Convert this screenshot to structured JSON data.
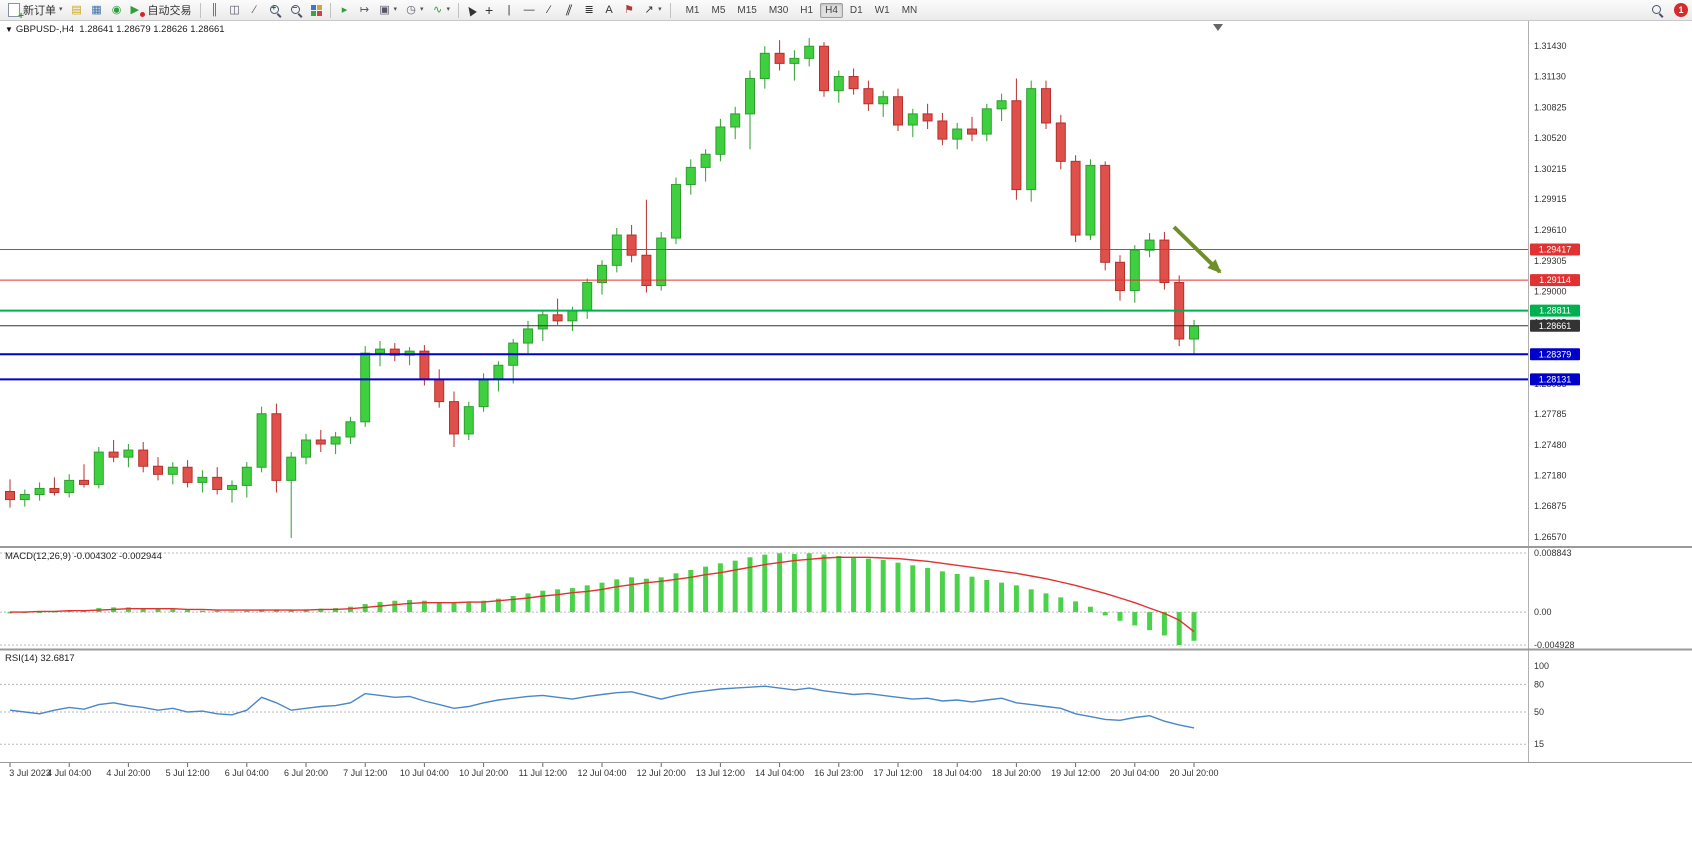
{
  "toolbar": {
    "new_order_label": "新订单",
    "autotrading_label": "自动交易",
    "timeframes": {
      "items": [
        "M1",
        "M5",
        "M15",
        "M30",
        "H1",
        "H4",
        "D1",
        "W1",
        "MN"
      ],
      "active": "H4"
    },
    "notification_count": "1",
    "buttons": [
      "new-order",
      "charts",
      "profiles",
      "navigator",
      "autotrading",
      "bar-chart",
      "candlesticks",
      "line-chart",
      "zoom-in",
      "zoom-out",
      "tile-windows",
      "auto-scroll",
      "chart-shift",
      "new-chart",
      "periods",
      "indicators",
      "cursor",
      "crosshair",
      "vertical-line",
      "horizontal-line",
      "trendline",
      "equidistant-channel",
      "fibonacci-retracement",
      "text",
      "text-label",
      "arrows",
      "search"
    ]
  },
  "chart": {
    "title": {
      "symbol_period": "GBPUSD-,H4",
      "ohlc": "1.28641 1.28679 1.28626 1.28661"
    }
  },
  "indicators": {
    "macd": {
      "label": "MACD(12,26,9) -0.004302 -0.002944"
    },
    "rsi": {
      "label": "RSI(14) 32.6817"
    }
  },
  "chart_data": {
    "type": "candlestick",
    "symbol": "GBPUSD-",
    "period": "H4",
    "price_range": {
      "min": 1.2648,
      "max": 1.3168
    },
    "price_axis_labels": [
      "1.31430",
      "1.31130",
      "1.30825",
      "1.30520",
      "1.30215",
      "1.29915",
      "1.29610",
      "1.29305",
      "1.29000",
      "1.28695",
      "1.28390",
      "1.28085",
      "1.27785",
      "1.27480",
      "1.27180",
      "1.26875",
      "1.26570"
    ],
    "time_labels": [
      "3 Jul 2023",
      "4 Jul 04:00",
      "4 Jul 20:00",
      "5 Jul 12:00",
      "6 Jul 04:00",
      "6 Jul 20:00",
      "7 Jul 12:00",
      "10 Jul 04:00",
      "10 Jul 20:00",
      "11 Jul 12:00",
      "12 Jul 04:00",
      "12 Jul 20:00",
      "13 Jul 12:00",
      "14 Jul 04:00",
      "16 Jul 23:00",
      "17 Jul 12:00",
      "18 Jul 04:00",
      "18 Jul 20:00",
      "19 Jul 12:00",
      "20 Jul 04:00",
      "20 Jul 20:00"
    ],
    "candles": [
      [
        1.2702,
        1.2714,
        1.2686,
        1.2694
      ],
      [
        1.2694,
        1.2704,
        1.2687,
        1.2699
      ],
      [
        1.2699,
        1.2711,
        1.2693,
        1.2705
      ],
      [
        1.2705,
        1.2716,
        1.2698,
        1.2701
      ],
      [
        1.2701,
        1.2719,
        1.2696,
        1.2713
      ],
      [
        1.2713,
        1.2729,
        1.2706,
        1.2709
      ],
      [
        1.2709,
        1.2746,
        1.2705,
        1.2741
      ],
      [
        1.2741,
        1.2753,
        1.2731,
        1.2736
      ],
      [
        1.2736,
        1.2749,
        1.2726,
        1.2743
      ],
      [
        1.2743,
        1.2751,
        1.2721,
        1.2727
      ],
      [
        1.2727,
        1.2736,
        1.2713,
        1.2719
      ],
      [
        1.2719,
        1.2731,
        1.2709,
        1.2726
      ],
      [
        1.2726,
        1.2733,
        1.2706,
        1.2711
      ],
      [
        1.2711,
        1.2723,
        1.2701,
        1.2716
      ],
      [
        1.2716,
        1.2726,
        1.2699,
        1.2704
      ],
      [
        1.2704,
        1.2713,
        1.2691,
        1.2708
      ],
      [
        1.2708,
        1.2731,
        1.2696,
        1.2726
      ],
      [
        1.2726,
        1.2786,
        1.2721,
        1.2779
      ],
      [
        1.2779,
        1.2789,
        1.2701,
        1.2713
      ],
      [
        1.2713,
        1.2741,
        1.2656,
        1.2736
      ],
      [
        1.2736,
        1.2759,
        1.2729,
        1.2753
      ],
      [
        1.2753,
        1.2763,
        1.2741,
        1.2749
      ],
      [
        1.2749,
        1.2761,
        1.2739,
        1.2756
      ],
      [
        1.2756,
        1.2776,
        1.2749,
        1.2771
      ],
      [
        1.2771,
        1.2846,
        1.2766,
        1.2839
      ],
      [
        1.2839,
        1.2851,
        1.2826,
        1.2843
      ],
      [
        1.2843,
        1.2849,
        1.2831,
        1.2837
      ],
      [
        1.2837,
        1.2845,
        1.2827,
        1.2841
      ],
      [
        1.2841,
        1.2847,
        1.2807,
        1.2813
      ],
      [
        1.2813,
        1.2823,
        1.2785,
        1.2791
      ],
      [
        1.2791,
        1.2801,
        1.2746,
        1.2759
      ],
      [
        1.2759,
        1.2791,
        1.2753,
        1.2786
      ],
      [
        1.2786,
        1.2819,
        1.2781,
        1.2813
      ],
      [
        1.2813,
        1.2831,
        1.2801,
        1.2827
      ],
      [
        1.2827,
        1.2853,
        1.2809,
        1.2849
      ],
      [
        1.2849,
        1.2871,
        1.2839,
        1.2863
      ],
      [
        1.2863,
        1.2881,
        1.2851,
        1.2877
      ],
      [
        1.2877,
        1.2893,
        1.2867,
        1.2871
      ],
      [
        1.2871,
        1.2885,
        1.2861,
        1.2881
      ],
      [
        1.2881,
        1.2913,
        1.2873,
        1.2909
      ],
      [
        1.2909,
        1.2931,
        1.2897,
        1.2926
      ],
      [
        1.2926,
        1.2963,
        1.2919,
        1.2956
      ],
      [
        1.2956,
        1.2966,
        1.2929,
        1.2936
      ],
      [
        1.2936,
        1.2991,
        1.2899,
        1.2906
      ],
      [
        1.2906,
        1.2959,
        1.2901,
        1.2953
      ],
      [
        1.2953,
        1.3013,
        1.2947,
        1.3006
      ],
      [
        1.3006,
        1.3031,
        1.2996,
        1.3023
      ],
      [
        1.3023,
        1.3041,
        1.3009,
        1.3036
      ],
      [
        1.3036,
        1.3071,
        1.3029,
        1.3063
      ],
      [
        1.3063,
        1.3083,
        1.3051,
        1.3076
      ],
      [
        1.3076,
        1.3119,
        1.3041,
        1.3111
      ],
      [
        1.3111,
        1.3143,
        1.3101,
        1.3136
      ],
      [
        1.3136,
        1.3149,
        1.3119,
        1.3126
      ],
      [
        1.3126,
        1.3139,
        1.3109,
        1.3131
      ],
      [
        1.3131,
        1.3151,
        1.3123,
        1.3143
      ],
      [
        1.3143,
        1.3147,
        1.3093,
        1.3099
      ],
      [
        1.3099,
        1.3119,
        1.3087,
        1.3113
      ],
      [
        1.3113,
        1.3121,
        1.3095,
        1.3101
      ],
      [
        1.3101,
        1.3109,
        1.3079,
        1.3086
      ],
      [
        1.3086,
        1.3099,
        1.3073,
        1.3093
      ],
      [
        1.3093,
        1.3101,
        1.3059,
        1.3065
      ],
      [
        1.3065,
        1.3081,
        1.3053,
        1.3076
      ],
      [
        1.3076,
        1.3086,
        1.3061,
        1.3069
      ],
      [
        1.3069,
        1.3077,
        1.3045,
        1.3051
      ],
      [
        1.3051,
        1.3067,
        1.3041,
        1.3061
      ],
      [
        1.3061,
        1.3073,
        1.3049,
        1.3056
      ],
      [
        1.3056,
        1.3086,
        1.3049,
        1.3081
      ],
      [
        1.3081,
        1.3096,
        1.3069,
        1.3089
      ],
      [
        1.3089,
        1.3111,
        1.2991,
        1.3001
      ],
      [
        1.3001,
        1.3109,
        1.2989,
        1.3101
      ],
      [
        1.3101,
        1.3109,
        1.3061,
        1.3067
      ],
      [
        1.3067,
        1.3075,
        1.3021,
        1.3029
      ],
      [
        1.3029,
        1.3035,
        1.2949,
        1.2956
      ],
      [
        1.2956,
        1.3031,
        1.2951,
        1.3025
      ],
      [
        1.3025,
        1.3029,
        1.2921,
        1.2929
      ],
      [
        1.2929,
        1.2936,
        1.2891,
        1.2901
      ],
      [
        1.2901,
        1.2946,
        1.2889,
        1.2941
      ],
      [
        1.2941,
        1.2958,
        1.2934,
        1.2951
      ],
      [
        1.2951,
        1.2959,
        1.2902,
        1.2909
      ],
      [
        1.2909,
        1.2916,
        1.2846,
        1.2853
      ],
      [
        1.2853,
        1.2872,
        1.2837,
        1.2866
      ]
    ],
    "levels": [
      {
        "label": "1.29417",
        "price": 1.29417,
        "color": "#e03232",
        "width": 1
      },
      {
        "label": "1.29114",
        "price": 1.29114,
        "color": "#e03232",
        "width": 1
      },
      {
        "label": "1.28811",
        "price": 1.28811,
        "color": "#00b050",
        "width": 2
      },
      {
        "label": "1.28661",
        "price": 1.28661,
        "color": "#333333",
        "width": 1,
        "current": true
      },
      {
        "label": "1.28379",
        "price": 1.28379,
        "color": "#0000cc",
        "width": 2
      },
      {
        "label": "1.28131",
        "price": 1.28131,
        "color": "#0000cc",
        "width": 2
      }
    ],
    "macd": {
      "histogram": [
        -0.0002,
        -0.0001,
        0,
        0.0001,
        0.0002,
        0.0003,
        0.0006,
        0.0007,
        0.0007,
        0.0006,
        0.0005,
        0.0004,
        0.0003,
        0.0002,
        0.0002,
        0.0001,
        0.0002,
        0.0004,
        0.0004,
        0.0003,
        0.0004,
        0.0005,
        0.0006,
        0.0008,
        0.0012,
        0.0015,
        0.0017,
        0.0018,
        0.0017,
        0.0015,
        0.0014,
        0.0015,
        0.0017,
        0.002,
        0.0024,
        0.0028,
        0.0032,
        0.0034,
        0.0036,
        0.004,
        0.0044,
        0.0049,
        0.0052,
        0.005,
        0.0052,
        0.0058,
        0.0063,
        0.0068,
        0.0073,
        0.0077,
        0.0082,
        0.0086,
        0.0088,
        0.0087,
        0.0088,
        0.0086,
        0.0084,
        0.0082,
        0.008,
        0.0078,
        0.0074,
        0.007,
        0.0066,
        0.0061,
        0.0057,
        0.0053,
        0.0048,
        0.0044,
        0.004,
        0.0034,
        0.0028,
        0.0022,
        0.0016,
        0.0008,
        -0.0005,
        -0.0013,
        -0.002,
        -0.0027,
        -0.0035,
        -0.00493,
        -0.0043
      ],
      "signal": [
        0,
        0,
        0.0001,
        0.0001,
        0.0002,
        0.0002,
        0.0003,
        0.0004,
        0.0005,
        0.0005,
        0.0005,
        0.0005,
        0.0004,
        0.0004,
        0.0003,
        0.0003,
        0.0003,
        0.0003,
        0.0003,
        0.0003,
        0.0003,
        0.0004,
        0.0004,
        0.0005,
        0.0007,
        0.0009,
        0.0011,
        0.0013,
        0.0014,
        0.0014,
        0.0014,
        0.0015,
        0.0015,
        0.0017,
        0.0019,
        0.0021,
        0.0024,
        0.0026,
        0.0029,
        0.0031,
        0.0034,
        0.0038,
        0.0041,
        0.0044,
        0.0046,
        0.0049,
        0.0052,
        0.0056,
        0.0059,
        0.0063,
        0.0067,
        0.0071,
        0.0074,
        0.0077,
        0.0079,
        0.0081,
        0.0082,
        0.0082,
        0.0082,
        0.0081,
        0.008,
        0.0078,
        0.0076,
        0.0073,
        0.007,
        0.0067,
        0.0064,
        0.0061,
        0.0058,
        0.0054,
        0.005,
        0.0045,
        0.004,
        0.0034,
        0.0028,
        0.0021,
        0.0014,
        0.0006,
        -0.0002,
        -0.0012,
        -0.00294
      ],
      "axis": [
        {
          "text": "0.008843",
          "value": 0.008843
        },
        {
          "text": "0.00",
          "value": 0
        },
        {
          "text": "-0.004928",
          "value": -0.004928
        }
      ]
    },
    "rsi": {
      "values": [
        52,
        50,
        48,
        52,
        55,
        53,
        58,
        60,
        57,
        55,
        52,
        54,
        50,
        51,
        48,
        47,
        52,
        66,
        60,
        52,
        54,
        56,
        57,
        60,
        70,
        68,
        66,
        67,
        62,
        58,
        54,
        56,
        60,
        63,
        65,
        67,
        68,
        66,
        64,
        67,
        69,
        71,
        72,
        68,
        64,
        68,
        71,
        73,
        75,
        76,
        77,
        78,
        76,
        74,
        76,
        73,
        71,
        69,
        70,
        68,
        66,
        64,
        65,
        62,
        63,
        61,
        63,
        65,
        60,
        58,
        56,
        54,
        48,
        45,
        42,
        41,
        44,
        46,
        40,
        36,
        32.7
      ],
      "axis_labels": [
        {
          "text": "100",
          "value": 100
        },
        {
          "text": "80",
          "value": 80
        },
        {
          "text": "50",
          "value": 50
        },
        {
          "text": "15",
          "value": 15
        }
      ],
      "level_lines": [
        80,
        50,
        15
      ]
    },
    "colors": {
      "up": "#3fd03f",
      "up_border": "#2f9e2f",
      "down": "#e0504a",
      "down_border": "#b5302c",
      "macd_hist": "#4ad34a",
      "macd_signal": "#e03232",
      "rsi_line": "#4a86c8",
      "arrow": "#6f8f28",
      "level_red": "#e03232",
      "level_green": "#00b050",
      "level_blue": "#0000cc"
    }
  }
}
